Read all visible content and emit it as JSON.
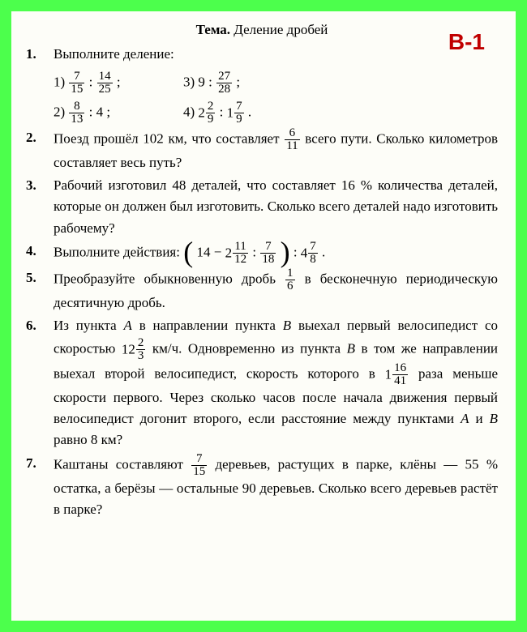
{
  "header": {
    "label": "Тема.",
    "title": "Деление дробей"
  },
  "variant": "В-1",
  "items": {
    "p1": {
      "num": "1.",
      "intro": "Выполните деление:",
      "a_label": "1)",
      "a_f1n": "7",
      "a_f1d": "15",
      "a_op": ":",
      "a_f2n": "14",
      "a_f2d": "25",
      "a_end": ";",
      "b_label": "3)",
      "b_lhs": "9",
      "b_op": ":",
      "b_f2n": "27",
      "b_f2d": "28",
      "b_end": ";",
      "c_label": "2)",
      "c_f1n": "8",
      "c_f1d": "13",
      "c_op": ":",
      "c_rhs": "4",
      "c_end": ";",
      "d_label": "4)",
      "d_w1": "2",
      "d_f1n": "2",
      "d_f1d": "9",
      "d_op": ":",
      "d_w2": "1",
      "d_f2n": "7",
      "d_f2d": "9",
      "d_end": "."
    },
    "p2": {
      "num": "2.",
      "t1": "Поезд прошёл 102 км, что составляет ",
      "fn": "6",
      "fd": "11",
      "t2": " всего пути. Сколько километров составляет весь путь?"
    },
    "p3": {
      "num": "3.",
      "t": "Рабочий изготовил 48 деталей, что составляет 16 % количества деталей, которые он должен был изготовить. Сколько всего деталей надо изготовить рабочему?"
    },
    "p4": {
      "num": "4.",
      "t1": "Выполните действия: ",
      "inA": "14 − ",
      "inW": "2",
      "inFn": "11",
      "inFd": "12",
      "inOp": " : ",
      "inF2n": "7",
      "inF2d": "18",
      "outOp": " : ",
      "outW": "4",
      "outFn": "7",
      "outFd": "8",
      "end": " ."
    },
    "p5": {
      "num": "5.",
      "t1": "Преобразуйте обыкновенную дробь ",
      "fn": "1",
      "fd": "6",
      "t2": " в бесконечную периодическую десятичную дробь."
    },
    "p6": {
      "num": "6.",
      "t1": "Из пункта ",
      "A1": "A",
      "t2": " в направлении пункта ",
      "B1": "B",
      "t3": " выехал первый велосипедист со скоростью ",
      "sW": "12",
      "sFn": "2",
      "sFd": "3",
      "t4": " км/ч. Одновременно из пункта ",
      "B2": "B",
      "t5": " в том же направлении выехал второй велосипедист, скорость которого в ",
      "rW": "1",
      "rFn": "16",
      "rFd": "41",
      "t6": " раза меньше скорости первого. Через сколько часов после начала движения первый велосипедист догонит второго, если расстояние между пунктами ",
      "A2": "A",
      "t7": " и ",
      "B3": "B",
      "t8": " равно 8 км?"
    },
    "p7": {
      "num": "7.",
      "t1": "Каштаны составляют ",
      "fn": "7",
      "fd": "15",
      "t2": " деревьев, растущих в парке, клёны — 55 % остатка, а берёзы — остальные 90 деревьев. Сколько всего деревьев растёт в парке?"
    }
  }
}
